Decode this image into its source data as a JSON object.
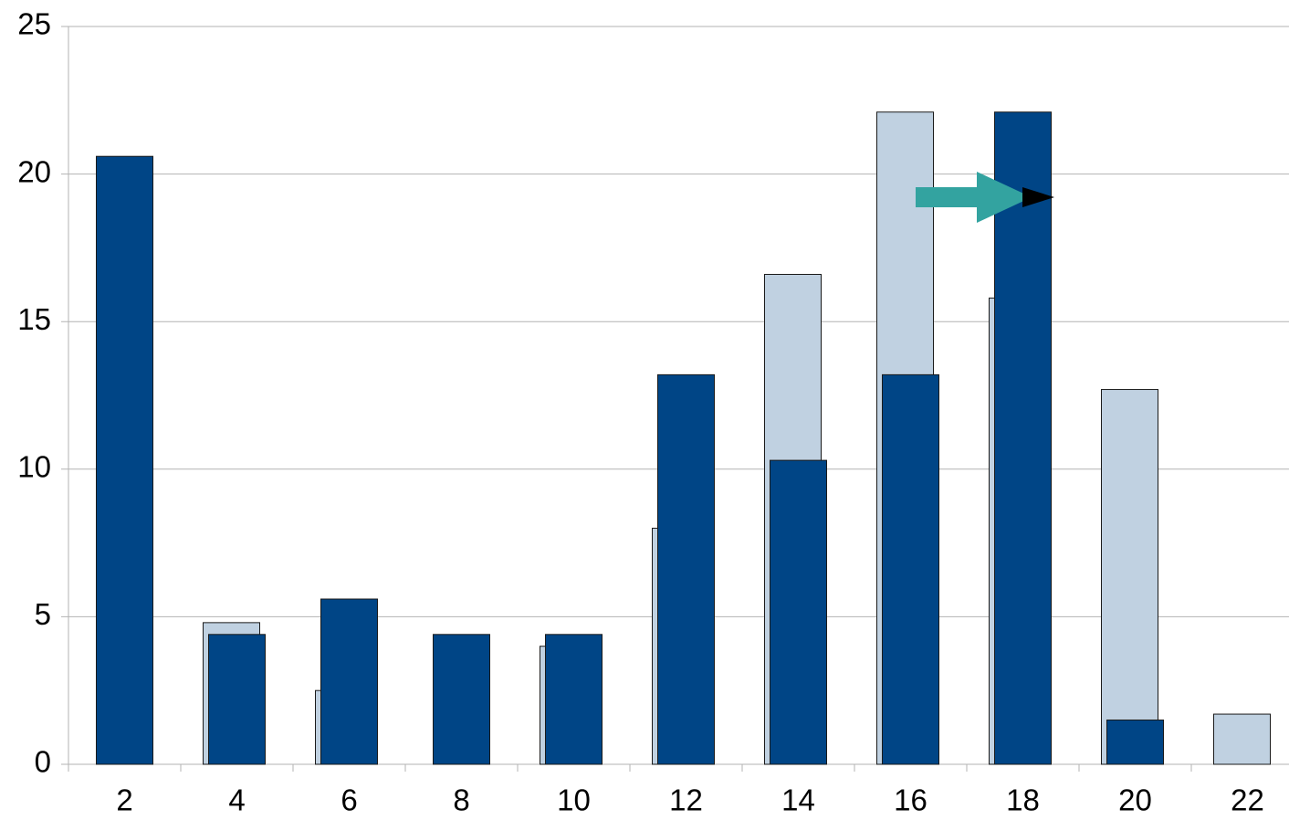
{
  "chart_data": {
    "type": "bar",
    "categories": [
      "2",
      "4",
      "6",
      "8",
      "10",
      "12",
      "14",
      "16",
      "18",
      "20",
      "22"
    ],
    "series": [
      {
        "color": "#c0d1e1",
        "values": [
          null,
          4.8,
          2.5,
          null,
          4.0,
          8.0,
          16.6,
          22.1,
          15.8,
          12.7,
          1.7
        ]
      },
      {
        "color": "#004586",
        "values": [
          20.6,
          4.4,
          5.6,
          4.4,
          4.4,
          13.2,
          10.3,
          13.2,
          22.1,
          1.5,
          null
        ]
      }
    ],
    "ylim": [
      0,
      25
    ],
    "yticks": [
      0,
      5,
      10,
      15,
      20,
      25
    ],
    "grid": true
  }
}
